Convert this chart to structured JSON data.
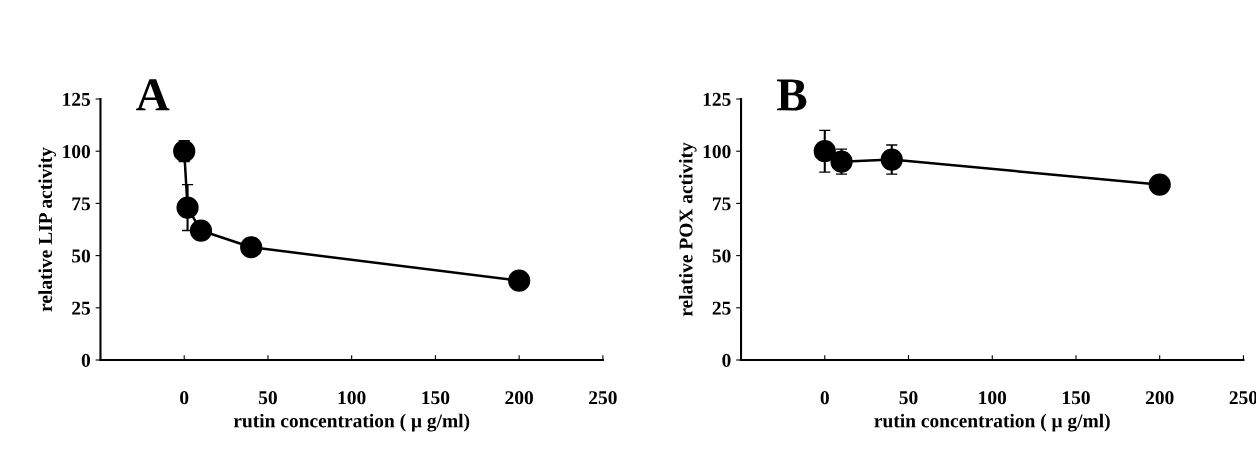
{
  "chart_data": [
    {
      "type": "line",
      "title": "A",
      "xlabel": "rutin concentration ( μ g/ml)",
      "ylabel": "relative LIP activity",
      "x": [
        0,
        2,
        10,
        40,
        200
      ],
      "series": [
        {
          "color": "#000000",
          "values": [
            100,
            73,
            62,
            54,
            38
          ],
          "errors": [
            5,
            11,
            2,
            2,
            2
          ]
        }
      ],
      "xlim": [
        -50,
        250
      ],
      "xticks": [
        {
          "value": -50,
          "label": null
        },
        0,
        50,
        100,
        150,
        200,
        250
      ],
      "ylim": [
        0,
        125
      ],
      "yticks": [
        0,
        25,
        50,
        75,
        100,
        125
      ],
      "marker": "circle",
      "line_style": "solid",
      "grid": false,
      "legend": false
    },
    {
      "type": "line",
      "title": "B",
      "xlabel": "rutin concentration ( μ g/ml)",
      "ylabel": "relative POX activity",
      "series": [
        {
          "color": "#000000",
          "x": [
            0,
            10,
            40,
            200
          ],
          "values": [
            100,
            95,
            96,
            84
          ],
          "errors": [
            10,
            6,
            7,
            2
          ]
        }
      ],
      "xlim": [
        -50,
        250
      ],
      "xticks": [
        {
          "value": -50,
          "label": null
        },
        0,
        50,
        100,
        150,
        200,
        250
      ],
      "ylim": [
        0,
        125
      ],
      "yticks": [
        0,
        25,
        50,
        75,
        100,
        125
      ],
      "marker": "circle",
      "line_style": "solid",
      "grid": false,
      "legend": false
    }
  ]
}
